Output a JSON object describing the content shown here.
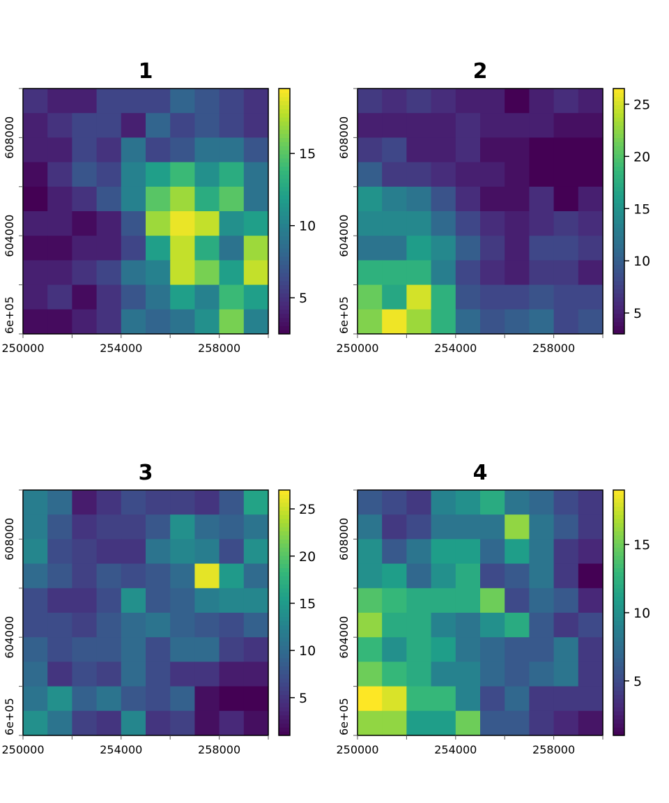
{
  "chart_data": [
    {
      "type": "heatmap",
      "title": "1",
      "xlim": [
        250000,
        260000
      ],
      "ylim": [
        600000,
        610000
      ],
      "x_ticks": [
        {
          "v": 250000,
          "label": "250000"
        },
        {
          "v": 254000,
          "label": "254000"
        },
        {
          "v": 258000,
          "label": "258000"
        }
      ],
      "y_ticks": [
        {
          "v": 600000,
          "label": "6e+05"
        },
        {
          "v": 604000,
          "label": "604000"
        },
        {
          "v": 608000,
          "label": "608000"
        }
      ],
      "legend_range": [
        2.5,
        19.5
      ],
      "legend_ticks": [
        {
          "v": 5,
          "label": "5"
        },
        {
          "v": 10,
          "label": "10"
        },
        {
          "v": 15,
          "label": "15"
        }
      ],
      "values": [
        [
          5,
          4,
          4,
          6,
          6,
          6,
          8,
          7,
          6,
          5
        ],
        [
          4,
          5,
          6,
          6,
          4,
          8,
          6,
          7,
          6,
          5
        ],
        [
          4,
          4,
          6,
          5,
          9,
          6,
          7,
          9,
          9,
          7
        ],
        [
          3,
          5,
          7,
          6,
          10,
          12,
          14,
          11,
          13,
          9
        ],
        [
          2,
          4,
          5,
          7,
          10,
          15,
          17,
          13,
          15,
          9
        ],
        [
          4,
          4,
          3,
          4,
          7,
          17,
          19,
          18,
          11,
          12
        ],
        [
          3,
          3,
          4,
          4,
          6,
          12,
          18,
          13,
          9,
          17
        ],
        [
          4,
          4,
          5,
          6,
          9,
          10,
          18,
          16,
          12,
          18
        ],
        [
          4,
          5,
          3,
          5,
          7,
          9,
          12,
          10,
          14,
          12
        ],
        [
          3,
          3,
          4,
          5,
          9,
          8,
          9,
          11,
          16,
          10
        ]
      ]
    },
    {
      "type": "heatmap",
      "title": "2",
      "xlim": [
        250000,
        260000
      ],
      "ylim": [
        600000,
        610000
      ],
      "x_ticks": [
        {
          "v": 250000,
          "label": "250000"
        },
        {
          "v": 254000,
          "label": "254000"
        },
        {
          "v": 258000,
          "label": "258000"
        }
      ],
      "y_ticks": [
        {
          "v": 600000,
          "label": "6e+05"
        },
        {
          "v": 604000,
          "label": "604000"
        },
        {
          "v": 608000,
          "label": "608000"
        }
      ],
      "legend_range": [
        3,
        26.5
      ],
      "legend_ticks": [
        {
          "v": 5,
          "label": "5"
        },
        {
          "v": 10,
          "label": "10"
        },
        {
          "v": 15,
          "label": "15"
        },
        {
          "v": 20,
          "label": "20"
        },
        {
          "v": 25,
          "label": "25"
        }
      ],
      "values": [
        [
          7,
          6,
          7,
          6,
          5,
          5,
          3,
          5,
          6,
          5
        ],
        [
          5,
          5,
          5,
          5,
          6,
          5,
          5,
          5,
          4,
          4
        ],
        [
          7,
          8,
          5,
          5,
          6,
          4,
          4,
          3,
          3,
          3
        ],
        [
          10,
          7,
          7,
          6,
          5,
          5,
          4,
          3,
          3,
          3
        ],
        [
          15,
          13,
          12,
          9,
          6,
          4,
          4,
          6,
          3,
          5
        ],
        [
          14,
          14,
          14,
          11,
          8,
          6,
          5,
          6,
          7,
          6
        ],
        [
          12,
          12,
          16,
          14,
          10,
          7,
          5,
          8,
          8,
          7
        ],
        [
          18,
          18,
          18,
          13,
          8,
          6,
          5,
          7,
          7,
          5
        ],
        [
          21,
          17,
          25,
          18,
          9,
          8,
          8,
          9,
          8,
          8
        ],
        [
          22,
          26,
          23,
          18,
          11,
          9,
          10,
          11,
          8,
          9
        ]
      ]
    },
    {
      "type": "heatmap",
      "title": "3",
      "xlim": [
        250000,
        260000
      ],
      "ylim": [
        600000,
        610000
      ],
      "x_ticks": [
        {
          "v": 250000,
          "label": "250000"
        },
        {
          "v": 254000,
          "label": "254000"
        },
        {
          "v": 258000,
          "label": "258000"
        }
      ],
      "y_ticks": [
        {
          "v": 600000,
          "label": "6e+05"
        },
        {
          "v": 604000,
          "label": "604000"
        },
        {
          "v": 608000,
          "label": "608000"
        }
      ],
      "legend_range": [
        1,
        27
      ],
      "legend_ticks": [
        {
          "v": 5,
          "label": "5"
        },
        {
          "v": 10,
          "label": "10"
        },
        {
          "v": 15,
          "label": "15"
        },
        {
          "v": 20,
          "label": "20"
        },
        {
          "v": 25,
          "label": "25"
        }
      ],
      "values": [
        [
          12,
          10,
          3,
          5,
          7,
          6,
          6,
          5,
          8,
          16
        ],
        [
          12,
          8,
          5,
          6,
          6,
          8,
          14,
          10,
          9,
          11
        ],
        [
          13,
          7,
          6,
          5,
          5,
          11,
          13,
          12,
          7,
          14
        ],
        [
          10,
          8,
          6,
          8,
          7,
          8,
          10,
          26,
          15,
          10
        ],
        [
          7,
          5,
          5,
          7,
          14,
          8,
          9,
          12,
          13,
          13
        ],
        [
          7,
          7,
          6,
          8,
          10,
          11,
          9,
          8,
          7,
          9
        ],
        [
          9,
          7,
          8,
          8,
          10,
          7,
          10,
          10,
          6,
          5
        ],
        [
          10,
          5,
          7,
          6,
          10,
          7,
          5,
          5,
          3,
          3
        ],
        [
          11,
          14,
          9,
          11,
          8,
          7,
          9,
          2,
          1,
          1
        ],
        [
          14,
          11,
          6,
          5,
          13,
          5,
          6,
          2,
          4,
          2
        ]
      ]
    },
    {
      "type": "heatmap",
      "title": "4",
      "xlim": [
        250000,
        260000
      ],
      "ylim": [
        600000,
        610000
      ],
      "x_ticks": [
        {
          "v": 250000,
          "label": "250000"
        },
        {
          "v": 254000,
          "label": "254000"
        },
        {
          "v": 258000,
          "label": "258000"
        }
      ],
      "y_ticks": [
        {
          "v": 600000,
          "label": "6e+05"
        },
        {
          "v": 604000,
          "label": "604000"
        },
        {
          "v": 608000,
          "label": "608000"
        }
      ],
      "legend_range": [
        1,
        19
      ],
      "legend_ticks": [
        {
          "v": 5,
          "label": "5"
        },
        {
          "v": 10,
          "label": "10"
        },
        {
          "v": 15,
          "label": "15"
        }
      ],
      "values": [
        [
          6,
          5,
          4,
          9,
          10,
          12,
          8,
          7,
          5,
          4
        ],
        [
          8,
          4,
          5,
          8,
          8,
          8,
          16,
          8,
          6,
          4
        ],
        [
          10,
          6,
          8,
          11,
          11,
          7,
          11,
          8,
          4,
          3
        ],
        [
          10,
          11,
          7,
          10,
          12,
          5,
          6,
          8,
          4,
          1
        ],
        [
          14,
          13,
          12,
          12,
          12,
          15,
          5,
          7,
          6,
          3
        ],
        [
          16,
          12,
          12,
          9,
          8,
          10,
          12,
          6,
          4,
          5
        ],
        [
          13,
          10,
          12,
          11,
          8,
          7,
          6,
          6,
          8,
          4
        ],
        [
          15,
          13,
          12,
          9,
          9,
          7,
          6,
          7,
          8,
          4
        ],
        [
          19,
          18,
          13,
          13,
          9,
          5,
          7,
          4,
          4,
          4
        ],
        [
          16,
          16,
          11,
          11,
          15,
          6,
          6,
          4,
          3,
          2
        ]
      ]
    }
  ]
}
